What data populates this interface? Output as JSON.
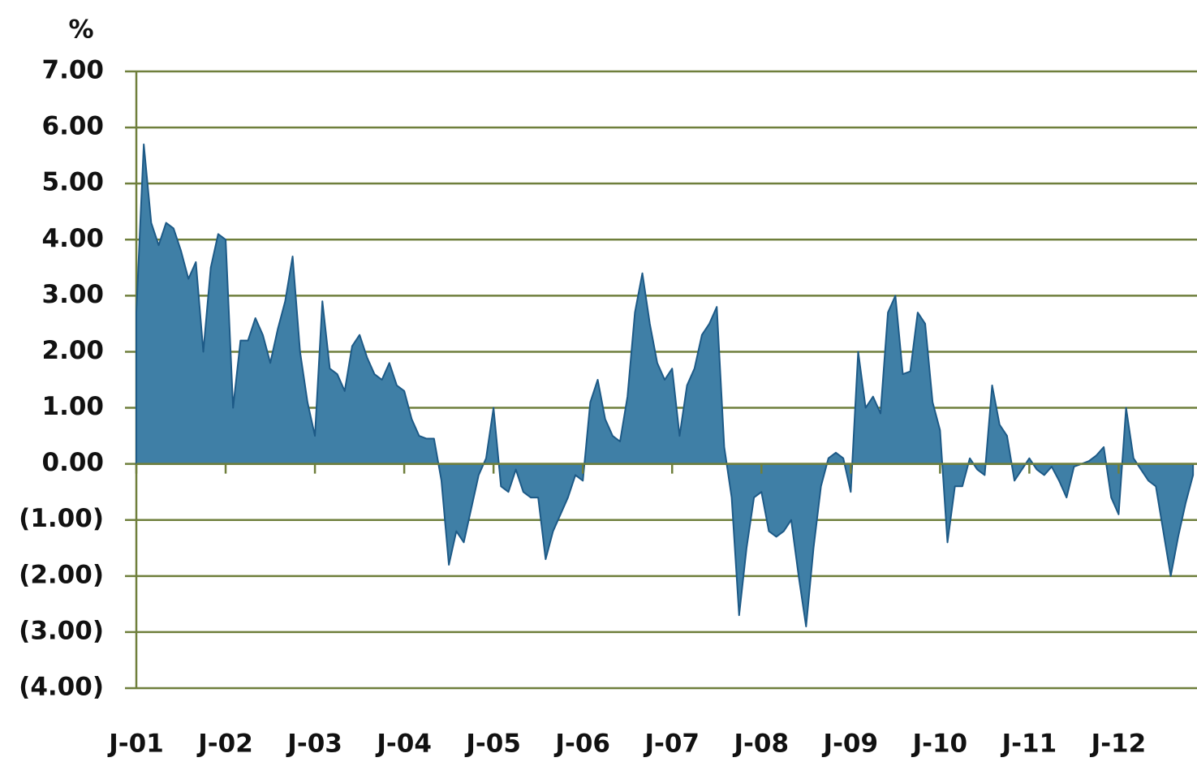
{
  "chart_data": {
    "type": "area",
    "ylabel": "%",
    "categories": [
      "J-01",
      null,
      null,
      null,
      null,
      null,
      null,
      null,
      null,
      null,
      null,
      null,
      "J-02",
      null,
      null,
      null,
      null,
      null,
      null,
      null,
      null,
      null,
      null,
      null,
      "J-03",
      null,
      null,
      null,
      null,
      null,
      null,
      null,
      null,
      null,
      null,
      null,
      "J-04",
      null,
      null,
      null,
      null,
      null,
      null,
      null,
      null,
      null,
      null,
      null,
      "J-05",
      null,
      null,
      null,
      null,
      null,
      null,
      null,
      null,
      null,
      null,
      null,
      "J-06",
      null,
      null,
      null,
      null,
      null,
      null,
      null,
      null,
      null,
      null,
      null,
      "J-07",
      null,
      null,
      null,
      null,
      null,
      null,
      null,
      null,
      null,
      null,
      null,
      "J-08",
      null,
      null,
      null,
      null,
      null,
      null,
      null,
      null,
      null,
      null,
      null,
      "J-09",
      null,
      null,
      null,
      null,
      null,
      null,
      null,
      null,
      null,
      null,
      null,
      "J-10",
      null,
      null,
      null,
      null,
      null,
      null,
      null,
      null,
      null,
      null,
      null,
      "J-11",
      null,
      null,
      null,
      null,
      null,
      null,
      null,
      null,
      null,
      null,
      null,
      "J-12",
      null,
      null,
      null,
      null,
      null,
      null,
      null,
      null,
      null,
      null
    ],
    "values": [
      2.7,
      5.7,
      4.3,
      3.9,
      4.3,
      4.2,
      3.8,
      3.3,
      3.6,
      2.0,
      3.5,
      4.1,
      4.0,
      1.0,
      2.2,
      2.2,
      2.6,
      2.3,
      1.8,
      2.4,
      2.9,
      3.7,
      2.0,
      1.1,
      0.5,
      2.9,
      1.7,
      1.6,
      1.3,
      2.1,
      2.3,
      1.9,
      1.6,
      1.5,
      1.8,
      1.4,
      1.3,
      0.8,
      0.5,
      0.45,
      0.45,
      -0.3,
      -1.8,
      -1.2,
      -1.4,
      -0.8,
      -0.2,
      0.1,
      1.0,
      -0.4,
      -0.5,
      -0.1,
      -0.5,
      -0.6,
      -0.6,
      -1.7,
      -1.2,
      -0.9,
      -0.6,
      -0.2,
      -0.3,
      1.1,
      1.5,
      0.8,
      0.5,
      0.4,
      1.2,
      2.7,
      3.4,
      2.5,
      1.8,
      1.5,
      1.7,
      0.5,
      1.4,
      1.7,
      2.3,
      2.5,
      2.8,
      0.3,
      -0.6,
      -2.7,
      -1.5,
      -0.6,
      -0.5,
      -1.2,
      -1.3,
      -1.2,
      -1.0,
      -2.0,
      -2.9,
      -1.5,
      -0.4,
      0.1,
      0.2,
      0.1,
      -0.5,
      2.0,
      1.0,
      1.2,
      0.9,
      2.7,
      3.0,
      1.6,
      1.65,
      2.7,
      2.5,
      1.1,
      0.6,
      -1.4,
      -0.4,
      -0.4,
      0.1,
      -0.1,
      -0.2,
      1.4,
      0.7,
      0.5,
      -0.3,
      -0.1,
      0.1,
      -0.1,
      -0.2,
      -0.05,
      -0.3,
      -0.6,
      -0.05,
      0.0,
      0.05,
      0.15,
      0.3,
      -0.6,
      -0.9,
      1.0,
      0.1,
      -0.1,
      -0.3,
      -0.4,
      -1.2,
      -2.0,
      -1.3,
      -0.7,
      -0.2
    ],
    "color": "#3f7fa6",
    "line_color": "#1d5a87",
    "grid": true,
    "grid_color": "#6f7f3c",
    "negative_label_color": "#ff2a00",
    "ylim": [
      -4,
      7
    ],
    "yticks": [
      {
        "value": -4,
        "label": "(4.00)"
      },
      {
        "value": -3,
        "label": "(3.00)"
      },
      {
        "value": -2,
        "label": "(2.00)"
      },
      {
        "value": -1,
        "label": "(1.00)"
      },
      {
        "value": 0,
        "label": "0.00"
      },
      {
        "value": 1,
        "label": "1.00"
      },
      {
        "value": 2,
        "label": "2.00"
      },
      {
        "value": 3,
        "label": "3.00"
      },
      {
        "value": 4,
        "label": "4.00"
      },
      {
        "value": 5,
        "label": "5.00"
      },
      {
        "value": 6,
        "label": "6.00"
      },
      {
        "value": 7,
        "label": "7.00"
      }
    ]
  }
}
